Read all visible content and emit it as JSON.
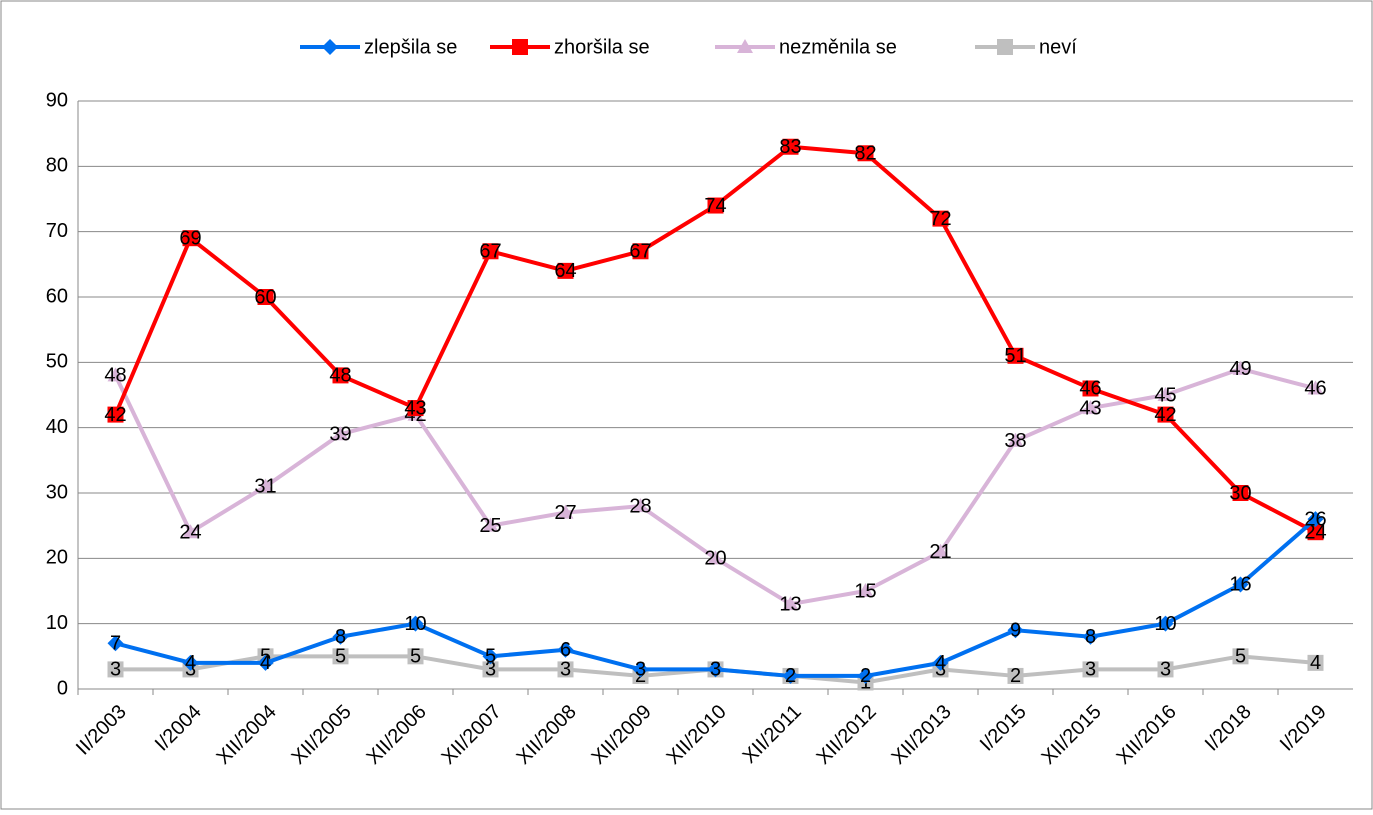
{
  "chart_data": {
    "type": "line",
    "categories": [
      "II/2003",
      "I/2004",
      "XII/2004",
      "XII/2005",
      "XII/2006",
      "XII/2007",
      "XII/2008",
      "XII/2009",
      "XII/2010",
      "XII/2011",
      "XII/2012",
      "XII/2013",
      "I/2015",
      "XII/2015",
      "XII/2016",
      "I/2018",
      "I/2019"
    ],
    "series": [
      {
        "name": "zlepšila se",
        "color": "#0070f0",
        "marker": "diamond",
        "values": [
          7,
          4,
          4,
          8,
          10,
          5,
          6,
          3,
          3,
          2,
          2,
          4,
          9,
          8,
          10,
          16,
          26
        ]
      },
      {
        "name": "zhoršila se",
        "color": "#ff0000",
        "marker": "square",
        "values": [
          42,
          69,
          60,
          48,
          43,
          67,
          64,
          67,
          74,
          83,
          82,
          72,
          51,
          46,
          42,
          30,
          24
        ]
      },
      {
        "name": "nezměnila se",
        "color": "#d8b4d8",
        "marker": "triangle",
        "values": [
          48,
          24,
          31,
          39,
          42,
          25,
          27,
          28,
          20,
          13,
          15,
          21,
          38,
          43,
          45,
          49,
          46
        ]
      },
      {
        "name": "neví",
        "color": "#bfbfbf",
        "marker": "square",
        "values": [
          3,
          3,
          5,
          5,
          5,
          3,
          3,
          2,
          3,
          2,
          1,
          3,
          2,
          3,
          3,
          5,
          4
        ]
      }
    ],
    "ylim": [
      0,
      90
    ],
    "yticks": [
      0,
      10,
      20,
      30,
      40,
      50,
      60,
      70,
      80,
      90
    ],
    "grid": true,
    "legend": "top"
  }
}
